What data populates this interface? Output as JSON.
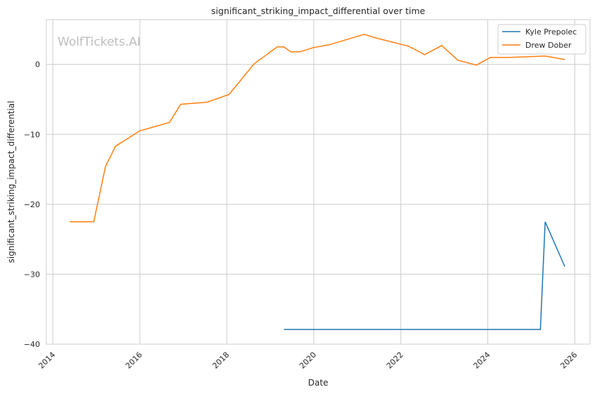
{
  "chart_data": {
    "type": "line",
    "title": "significant_striking_impact_differential over time",
    "xlabel": "Date",
    "ylabel": "significant_striking_impact_differential",
    "xlim": [
      2013.85,
      2026.35
    ],
    "ylim": [
      -40,
      6.4
    ],
    "xticks": [
      2014,
      2016,
      2018,
      2020,
      2022,
      2024,
      2026
    ],
    "xtick_labels": [
      "2014",
      "2016",
      "2018",
      "2020",
      "2022",
      "2024",
      "2026"
    ],
    "yticks": [
      -40,
      -30,
      -20,
      -10,
      0
    ],
    "ytick_labels": [
      "−40",
      "−30",
      "−20",
      "−10",
      "0"
    ],
    "grid": true,
    "legend_placement": "top-right",
    "watermark": "WolfTickets.AI",
    "series": [
      {
        "name": "Kyle Prepolec",
        "color": "#1f77b4",
        "x": [
          2019.31,
          2025.21,
          2025.32,
          2025.77
        ],
        "y": [
          -37.9,
          -37.9,
          -22.5,
          -28.9
        ]
      },
      {
        "name": "Drew Dober",
        "color": "#ff7f0e",
        "x": [
          2014.39,
          2014.94,
          2015.21,
          2015.44,
          2016.0,
          2016.68,
          2016.94,
          2017.55,
          2018.05,
          2018.63,
          2019.16,
          2019.31,
          2019.47,
          2019.68,
          2019.99,
          2020.35,
          2021.16,
          2021.42,
          2022.18,
          2022.55,
          2022.94,
          2023.31,
          2023.74,
          2024.06,
          2024.5,
          2025.32,
          2025.77
        ],
        "y": [
          -22.5,
          -22.5,
          -14.6,
          -11.7,
          -9.5,
          -8.3,
          -5.7,
          -5.4,
          -4.3,
          0.1,
          2.5,
          2.5,
          1.8,
          1.8,
          2.4,
          2.8,
          4.3,
          3.8,
          2.6,
          1.4,
          2.7,
          0.6,
          -0.1,
          1.0,
          1.0,
          1.2,
          0.7
        ]
      }
    ]
  }
}
